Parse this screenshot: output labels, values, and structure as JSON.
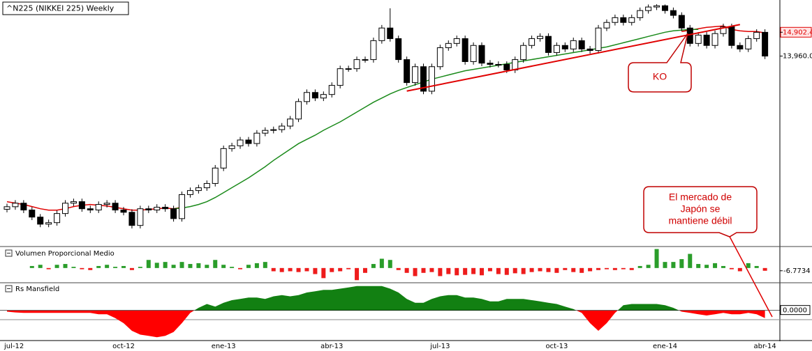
{
  "chart_data": [
    {
      "type": "candlestick",
      "title": "^N225 (NIKKEI 225) Weekly",
      "categories": [
        "jul-12",
        null,
        null,
        null,
        null,
        null,
        null,
        null,
        null,
        null,
        null,
        null,
        null,
        null,
        "oct-12",
        null,
        null,
        null,
        null,
        null,
        null,
        null,
        null,
        null,
        null,
        null,
        "ene-13",
        null,
        null,
        null,
        null,
        null,
        null,
        null,
        null,
        null,
        null,
        null,
        null,
        "abr-13",
        null,
        null,
        null,
        null,
        null,
        null,
        null,
        null,
        null,
        null,
        null,
        null,
        "jul-13",
        null,
        null,
        null,
        null,
        null,
        null,
        null,
        null,
        null,
        null,
        null,
        null,
        null,
        "oct-13",
        null,
        null,
        null,
        null,
        null,
        null,
        null,
        null,
        null,
        null,
        null,
        null,
        "ene-14",
        null,
        null,
        null,
        null,
        null,
        null,
        null,
        null,
        null,
        null,
        null,
        "abr-14"
      ],
      "open": [
        7900,
        8000,
        8140,
        7870,
        7590,
        7310,
        7370,
        7730,
        8140,
        8200,
        7920,
        7870,
        8090,
        8140,
        7870,
        7780,
        7260,
        7920,
        7870,
        7980,
        7920,
        7530,
        8480,
        8640,
        8750,
        8920,
        9530,
        10300,
        10410,
        10640,
        10500,
        10910,
        11020,
        11050,
        11190,
        11470,
        12160,
        12520,
        12300,
        12440,
        12800,
        13460,
        13460,
        13820,
        13820,
        14570,
        15070,
        14650,
        13820,
        12910,
        13540,
        12570,
        13540,
        14290,
        14460,
        14650,
        13740,
        14380,
        13680,
        13630,
        13630,
        13410,
        13820,
        14380,
        14650,
        14740,
        14100,
        14380,
        14240,
        14570,
        14240,
        14180,
        15070,
        15290,
        15480,
        15290,
        15480,
        15760,
        15900,
        15950,
        15760,
        15570,
        15070,
        14460,
        14790,
        14380,
        14850,
        15120,
        14380,
        14240,
        14650,
        14900
      ],
      "high": [
        8120,
        8260,
        8260,
        7990,
        7710,
        7490,
        7850,
        8260,
        8320,
        8320,
        8040,
        8210,
        8260,
        8260,
        7990,
        7900,
        8040,
        8040,
        8100,
        8100,
        8040,
        8600,
        8760,
        8870,
        9040,
        9650,
        10420,
        10530,
        10760,
        10760,
        11030,
        11140,
        11170,
        11310,
        11590,
        12280,
        12640,
        12640,
        12560,
        12920,
        13580,
        13580,
        13940,
        13940,
        14690,
        15190,
        15850,
        14770,
        13940,
        13660,
        13660,
        13660,
        14410,
        14580,
        14770,
        14770,
        14500,
        14500,
        13800,
        13750,
        13750,
        13940,
        14500,
        14770,
        14860,
        14860,
        14500,
        14500,
        14690,
        14690,
        14360,
        15190,
        15410,
        15600,
        15600,
        15600,
        15880,
        16000,
        16010,
        16000,
        15880,
        15690,
        15190,
        14910,
        14910,
        14970,
        15240,
        15240,
        14500,
        14770,
        15020,
        15020
      ],
      "low": [
        7780,
        7880,
        7750,
        7470,
        7190,
        7190,
        7250,
        7610,
        8020,
        7800,
        7750,
        7750,
        7970,
        7750,
        7660,
        7140,
        7140,
        7750,
        7750,
        7800,
        7410,
        7410,
        8360,
        8520,
        8630,
        8800,
        9410,
        10180,
        10290,
        10380,
        10380,
        10790,
        10900,
        10930,
        11070,
        11350,
        12040,
        12180,
        12180,
        12320,
        12680,
        13340,
        13340,
        13700,
        13700,
        14450,
        14530,
        13700,
        12790,
        12790,
        12450,
        12450,
        13420,
        14170,
        14340,
        13620,
        13620,
        13560,
        13510,
        13510,
        13290,
        13290,
        13700,
        14260,
        14530,
        13980,
        13980,
        14120,
        14120,
        14120,
        14060,
        14060,
        14950,
        15170,
        15170,
        15170,
        15360,
        15640,
        15780,
        15640,
        15450,
        14950,
        14340,
        14340,
        14260,
        14260,
        14730,
        14260,
        14120,
        14120,
        14530,
        13840
      ],
      "close": [
        8000,
        8140,
        7870,
        7590,
        7310,
        7370,
        7730,
        8140,
        8200,
        7920,
        7870,
        8090,
        8140,
        7870,
        7780,
        7260,
        7920,
        7870,
        7980,
        7920,
        7530,
        8480,
        8640,
        8750,
        8920,
        9530,
        10300,
        10410,
        10640,
        10500,
        10910,
        11020,
        11050,
        11190,
        11470,
        12160,
        12520,
        12300,
        12440,
        12800,
        13460,
        13460,
        13820,
        13820,
        14570,
        15070,
        14650,
        13820,
        12910,
        13540,
        12570,
        13540,
        14290,
        14460,
        14650,
        13740,
        14380,
        13680,
        13630,
        13630,
        13410,
        13820,
        14380,
        14650,
        14740,
        14100,
        14380,
        14240,
        14570,
        14240,
        14180,
        15070,
        15290,
        15480,
        15290,
        15480,
        15760,
        15900,
        15950,
        15760,
        15570,
        15070,
        14460,
        14790,
        14380,
        14850,
        15120,
        14380,
        14240,
        14650,
        14900,
        13960
      ],
      "colors": {
        "up": "#ffffff",
        "down": "#000000"
      },
      "lines": [
        {
          "color": "#e00000",
          "values": [
            8198,
            8143,
            8088,
            8005,
            7921,
            7866,
            7866,
            7921,
            8005,
            8060,
            8088,
            8060,
            8032,
            7977,
            7921,
            7866,
            7866,
            7894,
            7921,
            7949,
            7921,
            7977,
            null,
            null,
            null,
            null,
            null,
            null,
            null,
            null,
            null,
            null,
            null,
            null,
            null,
            null,
            null,
            null,
            null,
            null,
            null,
            null,
            null,
            null,
            null,
            null,
            null,
            null,
            null,
            null,
            null,
            null,
            null,
            null,
            null,
            null,
            null,
            null,
            null,
            null,
            null,
            null,
            null,
            null,
            null,
            null,
            null,
            null,
            null,
            null,
            null,
            null,
            null,
            null,
            null,
            null,
            null,
            null,
            null,
            null,
            null,
            14930,
            14985,
            15040,
            15096,
            15123,
            15151,
            15013,
            14957,
            14930,
            14930,
            14874
          ]
        },
        {
          "color": "#1a8a1a",
          "values": [
            null,
            null,
            null,
            null,
            null,
            null,
            null,
            null,
            null,
            null,
            null,
            null,
            null,
            null,
            null,
            null,
            null,
            null,
            null,
            null,
            7921,
            7949,
            8005,
            8088,
            8198,
            8365,
            8558,
            8752,
            8946,
            9140,
            9362,
            9583,
            9833,
            10054,
            10276,
            10498,
            10664,
            10830,
            11024,
            11190,
            11356,
            11550,
            11744,
            11938,
            12132,
            12298,
            12464,
            12603,
            12714,
            12824,
            12935,
            13046,
            13129,
            13212,
            13295,
            13378,
            13434,
            13489,
            13544,
            13600,
            13655,
            13711,
            13766,
            13822,
            13877,
            13932,
            13988,
            14043,
            14098,
            14154,
            14209,
            14265,
            14320,
            14403,
            14486,
            14569,
            14652,
            14736,
            14819,
            14902,
            14957,
            14985,
            15013,
            15013,
            null,
            null,
            null,
            null,
            null,
            null,
            null,
            null
          ]
        }
      ],
      "trendlines": [
        {
          "color": "#e00000",
          "x": [
            48,
            88
          ],
          "values": [
            12575,
            15206
          ]
        }
      ],
      "ylim": [
        6480,
        16040
      ],
      "yticks": [
        {
          "value": 14902.4,
          "label": "14,902.4"
        },
        {
          "value": 13960,
          "label": "13,960.0"
        }
      ],
      "annotations": [
        {
          "lines": [
            "KO"
          ]
        },
        {
          "lines": [
            "El mercado de",
            "Japón se",
            "mantiene débil"
          ]
        }
      ]
    },
    {
      "type": "bar",
      "title": "Volumen Proporcional Medio",
      "values": [
        0,
        0,
        0,
        5,
        8,
        -3,
        8,
        10,
        3,
        -3,
        -5,
        5,
        8,
        3,
        5,
        -5,
        3,
        20,
        13,
        15,
        8,
        15,
        10,
        12,
        8,
        20,
        8,
        3,
        -3,
        8,
        12,
        15,
        -8,
        -10,
        -8,
        -10,
        -8,
        -15,
        -25,
        -10,
        -8,
        -3,
        -30,
        -12,
        10,
        23,
        20,
        -5,
        -12,
        -20,
        -12,
        -10,
        -20,
        -15,
        -18,
        -17,
        -15,
        -18,
        -8,
        -15,
        -17,
        -13,
        -15,
        -10,
        -8,
        -10,
        -12,
        -5,
        -10,
        -12,
        -8,
        -5,
        -3,
        -5,
        -3,
        -5,
        5,
        8,
        47,
        15,
        15,
        22,
        35,
        10,
        8,
        12,
        5,
        -3,
        -8,
        12,
        5,
        -6.7734
      ],
      "colors": {
        "up": "#2a9d2a",
        "down": "#ee1c1c"
      },
      "ylim": [
        -33,
        48
      ],
      "yticks": [
        {
          "value": -6.7734,
          "label": "-6.7734"
        }
      ]
    },
    {
      "type": "area",
      "title": "Rs Mansfield",
      "values": [
        -0.05,
        -0.08,
        -0.1,
        -0.1,
        -0.1,
        -0.1,
        -0.1,
        -0.1,
        -0.1,
        -0.1,
        -0.1,
        -0.15,
        -0.15,
        -0.3,
        -0.5,
        -0.8,
        -0.95,
        -1.0,
        -1.05,
        -1.0,
        -0.85,
        -0.5,
        -0.1,
        0.1,
        0.25,
        0.15,
        0.3,
        0.4,
        0.45,
        0.5,
        0.5,
        0.45,
        0.55,
        0.6,
        0.55,
        0.6,
        0.7,
        0.75,
        0.8,
        0.8,
        0.85,
        0.9,
        0.95,
        0.95,
        0.95,
        0.95,
        0.85,
        0.7,
        0.45,
        0.3,
        0.3,
        0.45,
        0.55,
        0.6,
        0.6,
        0.5,
        0.5,
        0.45,
        0.35,
        0.35,
        0.45,
        0.45,
        0.45,
        0.4,
        0.35,
        0.3,
        0.25,
        0.15,
        0.05,
        -0.1,
        -0.5,
        -0.8,
        -0.5,
        -0.1,
        0.2,
        0.25,
        0.25,
        0.25,
        0.25,
        0.2,
        0.1,
        -0.05,
        -0.1,
        -0.15,
        -0.2,
        -0.15,
        -0.1,
        -0.15,
        -0.15,
        -0.1,
        -0.15,
        -0.3
      ],
      "colors": {
        "up": "#128012",
        "down": "#ff0000"
      },
      "ylim": [
        -1.1,
        1.0
      ],
      "yticks": [
        {
          "value": 0,
          "label": "0.0000"
        }
      ]
    }
  ]
}
